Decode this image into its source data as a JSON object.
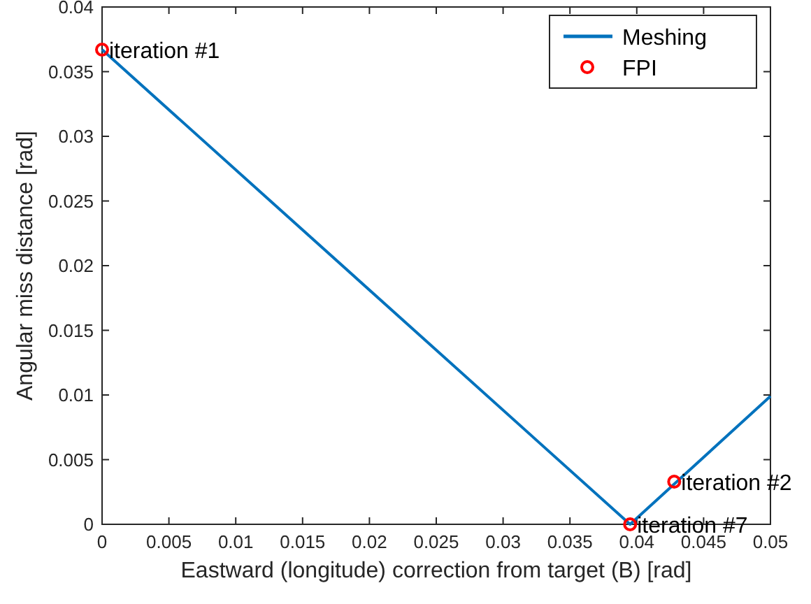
{
  "chart_data": {
    "type": "line",
    "xlabel": "Eastward (longitude) correction from target (B) [rad]",
    "ylabel": "Angular miss distance [rad]",
    "xlim": [
      0,
      0.05
    ],
    "xticks": [
      0,
      0.005,
      0.01,
      0.015,
      0.02,
      0.025,
      0.03,
      0.035,
      0.04,
      0.045,
      0.05
    ],
    "ylim": [
      0,
      0.04
    ],
    "yticks": [
      0,
      0.005,
      0.01,
      0.015,
      0.02,
      0.025,
      0.03,
      0.035,
      0.04
    ],
    "grid": false,
    "legend": "top right",
    "series": [
      {
        "name": "Meshing",
        "type": "line",
        "color": "#0072bd",
        "marker": "none",
        "x": [
          0,
          0.0395,
          0.05
        ],
        "values": [
          0.0367,
          0,
          0.0099
        ]
      },
      {
        "name": "FPI",
        "type": "scatter",
        "color": "#ff0000",
        "marker": "circle",
        "x": [
          0,
          0.0428,
          0.0395
        ],
        "values": [
          0.0367,
          0.0033,
          0
        ]
      }
    ],
    "annotations": [
      {
        "text": "iteration #1",
        "x": 0,
        "y": 0.0367
      },
      {
        "text": "iteration #2",
        "x": 0.0428,
        "y": 0.0033
      },
      {
        "text": "iteration #7",
        "x": 0.0395,
        "y": 0
      }
    ]
  }
}
